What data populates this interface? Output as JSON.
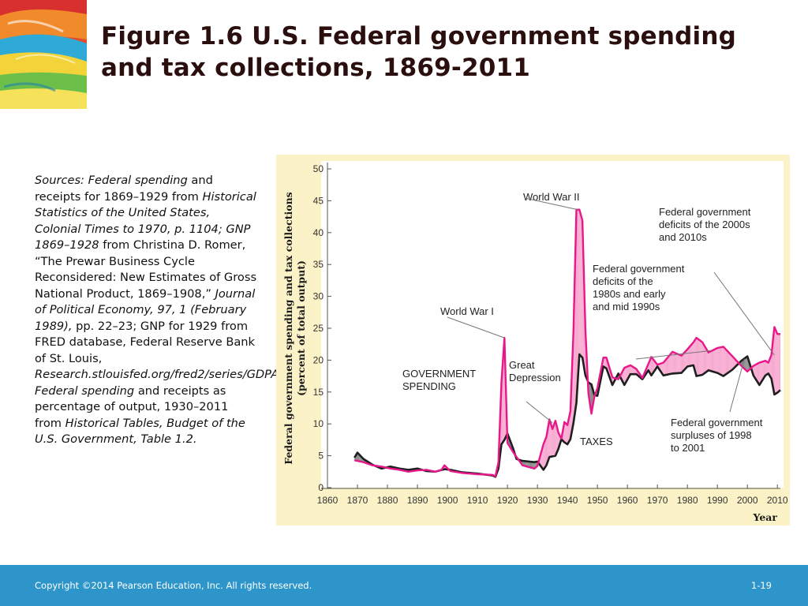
{
  "slide": {
    "title_line1": "Figure 1.6  U.S. Federal government spending",
    "title_line2": "and tax collections, 1869-2011",
    "sources": [
      {
        "text": "Sources: Federal spending",
        "italic": true
      },
      {
        "text": " and receipts for 1869–1929 from ",
        "italic": false
      },
      {
        "text": "Historical Statistics of the United States, Colonial Times to 1970, p. 1104; GNP 1869–1928",
        "italic": true
      },
      {
        "text": " from Christina D. Romer, “The Prewar Business Cycle Reconsidered: New Estimates of Gross National Product, 1869–1908,” ",
        "italic": false
      },
      {
        "text": "Journal of Political Economy, 97, 1 (February 1989),",
        "italic": true
      },
      {
        "text": " pp. 22–23; GNP for 1929 from FRED database, Federal Reserve Bank of St. Louis, ",
        "italic": false
      },
      {
        "text": "Research.stlouisfed.org/fred2/series/GDPA; Federal spending",
        "italic": true
      },
      {
        "text": " and receipts as percentage of output, 1930–2011 from ",
        "italic": false
      },
      {
        "text": "Historical Tables, Budget of the U.S. Government, Table 1.2.",
        "italic": true
      }
    ]
  },
  "footer": {
    "copyright": "Copyright ©2014 Pearson Education, Inc. All rights reserved.",
    "slide_number": "1-19"
  },
  "colors": {
    "spending_line": "#e8178a",
    "deficit_fill": "#f7a8cf",
    "tax_line": "#1f1f1f",
    "surplus_fill": "#8a8a8a",
    "panel_bg": "#fbf3c7",
    "plot_bg": "#ffffff",
    "footer_bar": "#2d95c9"
  },
  "chart_data": {
    "type": "line",
    "ylabel": "Federal government spending and tax collections (percent of total output)",
    "xlabel": "Year",
    "xlim": [
      1860,
      2011
    ],
    "ylim": [
      0,
      50
    ],
    "x_ticks": [
      1860,
      1870,
      1880,
      1890,
      1900,
      1910,
      1920,
      1930,
      1940,
      1950,
      1960,
      1970,
      1980,
      1990,
      2000,
      2010
    ],
    "y_ticks": [
      0,
      5,
      10,
      15,
      20,
      25,
      30,
      35,
      40,
      45,
      50
    ],
    "grid": false,
    "series": [
      {
        "name": "GOVERNMENT SPENDING",
        "color": "#e8178a",
        "points": [
          [
            1869,
            4.3
          ],
          [
            1872,
            4.0
          ],
          [
            1875,
            3.5
          ],
          [
            1878,
            3.3
          ],
          [
            1881,
            3.0
          ],
          [
            1884,
            2.8
          ],
          [
            1887,
            2.5
          ],
          [
            1890,
            2.7
          ],
          [
            1893,
            2.8
          ],
          [
            1896,
            2.5
          ],
          [
            1898,
            2.8
          ],
          [
            1899,
            3.5
          ],
          [
            1901,
            2.6
          ],
          [
            1905,
            2.3
          ],
          [
            1910,
            2.1
          ],
          [
            1915,
            2.0
          ],
          [
            1916,
            1.8
          ],
          [
            1917,
            4.0
          ],
          [
            1918,
            16.5
          ],
          [
            1919,
            23.5
          ],
          [
            1920,
            7.0
          ],
          [
            1922,
            5.5
          ],
          [
            1925,
            3.5
          ],
          [
            1929,
            3.0
          ],
          [
            1930,
            3.4
          ],
          [
            1932,
            6.8
          ],
          [
            1933,
            8.0
          ],
          [
            1934,
            10.7
          ],
          [
            1935,
            9.2
          ],
          [
            1936,
            10.5
          ],
          [
            1937,
            8.6
          ],
          [
            1938,
            7.7
          ],
          [
            1939,
            10.3
          ],
          [
            1940,
            9.8
          ],
          [
            1941,
            12.0
          ],
          [
            1942,
            24.3
          ],
          [
            1943,
            43.6
          ],
          [
            1944,
            43.6
          ],
          [
            1945,
            41.9
          ],
          [
            1946,
            24.8
          ],
          [
            1947,
            14.8
          ],
          [
            1948,
            11.6
          ],
          [
            1949,
            14.3
          ],
          [
            1950,
            15.6
          ],
          [
            1952,
            20.4
          ],
          [
            1953,
            20.4
          ],
          [
            1955,
            17.3
          ],
          [
            1957,
            17.0
          ],
          [
            1959,
            18.8
          ],
          [
            1961,
            19.2
          ],
          [
            1963,
            18.6
          ],
          [
            1965,
            17.2
          ],
          [
            1967,
            19.4
          ],
          [
            1968,
            20.5
          ],
          [
            1970,
            19.3
          ],
          [
            1972,
            19.6
          ],
          [
            1975,
            21.3
          ],
          [
            1978,
            20.7
          ],
          [
            1980,
            21.7
          ],
          [
            1982,
            22.8
          ],
          [
            1983,
            23.5
          ],
          [
            1985,
            22.8
          ],
          [
            1987,
            21.2
          ],
          [
            1990,
            21.9
          ],
          [
            1992,
            22.1
          ],
          [
            1995,
            20.6
          ],
          [
            1998,
            19.1
          ],
          [
            2000,
            18.2
          ],
          [
            2002,
            19.1
          ],
          [
            2004,
            19.6
          ],
          [
            2006,
            19.9
          ],
          [
            2007,
            19.6
          ],
          [
            2008,
            20.8
          ],
          [
            2009,
            25.2
          ],
          [
            2010,
            24.1
          ],
          [
            2011,
            24.1
          ]
        ]
      },
      {
        "name": "TAXES",
        "color": "#1f1f1f",
        "points": [
          [
            1869,
            4.7
          ],
          [
            1870,
            5.5
          ],
          [
            1872,
            4.5
          ],
          [
            1875,
            3.6
          ],
          [
            1878,
            3.0
          ],
          [
            1881,
            3.3
          ],
          [
            1884,
            3.0
          ],
          [
            1887,
            2.8
          ],
          [
            1890,
            3.0
          ],
          [
            1893,
            2.6
          ],
          [
            1896,
            2.5
          ],
          [
            1899,
            2.9
          ],
          [
            1901,
            2.8
          ],
          [
            1905,
            2.4
          ],
          [
            1910,
            2.2
          ],
          [
            1915,
            1.9
          ],
          [
            1916,
            1.7
          ],
          [
            1917,
            3.0
          ],
          [
            1918,
            6.8
          ],
          [
            1919,
            7.5
          ],
          [
            1920,
            8.5
          ],
          [
            1922,
            6.0
          ],
          [
            1923,
            4.5
          ],
          [
            1925,
            4.2
          ],
          [
            1929,
            4.0
          ],
          [
            1930,
            4.1
          ],
          [
            1932,
            2.8
          ],
          [
            1933,
            3.5
          ],
          [
            1934,
            4.8
          ],
          [
            1936,
            5.0
          ],
          [
            1937,
            6.1
          ],
          [
            1938,
            7.6
          ],
          [
            1939,
            7.1
          ],
          [
            1940,
            6.8
          ],
          [
            1941,
            7.6
          ],
          [
            1942,
            10.1
          ],
          [
            1943,
            13.3
          ],
          [
            1944,
            20.9
          ],
          [
            1945,
            20.4
          ],
          [
            1946,
            17.6
          ],
          [
            1947,
            16.5
          ],
          [
            1948,
            16.2
          ],
          [
            1949,
            14.5
          ],
          [
            1950,
            14.4
          ],
          [
            1952,
            19.0
          ],
          [
            1953,
            18.7
          ],
          [
            1955,
            16.1
          ],
          [
            1957,
            17.9
          ],
          [
            1959,
            16.1
          ],
          [
            1961,
            17.8
          ],
          [
            1963,
            17.8
          ],
          [
            1965,
            17.0
          ],
          [
            1967,
            18.4
          ],
          [
            1968,
            17.6
          ],
          [
            1970,
            19.0
          ],
          [
            1972,
            17.6
          ],
          [
            1975,
            17.9
          ],
          [
            1978,
            18.0
          ],
          [
            1980,
            19.0
          ],
          [
            1982,
            19.2
          ],
          [
            1983,
            17.5
          ],
          [
            1985,
            17.7
          ],
          [
            1987,
            18.4
          ],
          [
            1990,
            18.0
          ],
          [
            1992,
            17.5
          ],
          [
            1995,
            18.5
          ],
          [
            1998,
            19.9
          ],
          [
            2000,
            20.6
          ],
          [
            2002,
            17.6
          ],
          [
            2004,
            16.1
          ],
          [
            2006,
            17.6
          ],
          [
            2007,
            17.9
          ],
          [
            2008,
            17.1
          ],
          [
            2009,
            14.6
          ],
          [
            2010,
            14.9
          ],
          [
            2011,
            15.3
          ]
        ]
      }
    ],
    "annotations": [
      {
        "lines": [
          "World War II"
        ],
        "target": [
          1943.5,
          43.6
        ]
      },
      {
        "lines": [
          "World War I"
        ],
        "target": [
          1919,
          23.5
        ]
      },
      {
        "lines": [
          "Federal government",
          "deficits of the 2000s",
          "and 2010s"
        ],
        "target": [
          2009,
          20.8
        ]
      },
      {
        "lines": [
          "Federal government",
          "deficits of the",
          "1980s and early",
          "and mid 1990s"
        ],
        "target": [
          1988,
          21.5
        ]
      },
      {
        "lines": [
          "Great",
          "Depression"
        ],
        "target": [
          1935,
          10.2
        ]
      },
      {
        "lines": [
          "GOVERNMENT",
          "SPENDING"
        ],
        "target": null
      },
      {
        "lines": [
          "TAXES"
        ],
        "target": null
      },
      {
        "lines": [
          "Federal government",
          "surpluses of 1998",
          "to 2001"
        ],
        "target": [
          1999,
          20.2
        ]
      }
    ]
  }
}
